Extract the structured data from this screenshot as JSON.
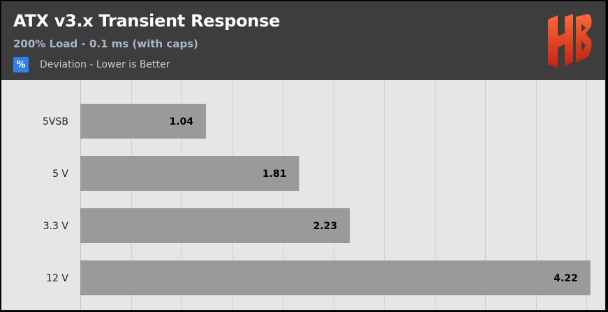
{
  "header": {
    "title": "ATX v3.x Transient Response",
    "subtitle": "200% Load - 0.1 ms (with caps)",
    "legend_symbol": "%",
    "legend_label": "Deviation - Lower is Better",
    "logo_icon": "hb-logo-icon"
  },
  "colors": {
    "header_bg": "#3d3d3d",
    "plot_bg": "#e6e6e6",
    "bar": "#9a9a9a",
    "legend_swatch": "#2f80ed",
    "subtitle": "#aab7c8",
    "logo": "#e8452a"
  },
  "chart_data": {
    "type": "bar",
    "orientation": "horizontal",
    "categories": [
      "5VSB",
      "5 V",
      "3.3 V",
      "12 V"
    ],
    "values": [
      1.04,
      1.81,
      2.23,
      4.22
    ],
    "series": [
      {
        "name": "Deviation - Lower is Better",
        "values": [
          1.04,
          1.81,
          2.23,
          4.22
        ]
      }
    ],
    "unit": "%",
    "xlim": [
      0,
      4.25
    ],
    "grid": true,
    "legend_placement": "top-left"
  }
}
